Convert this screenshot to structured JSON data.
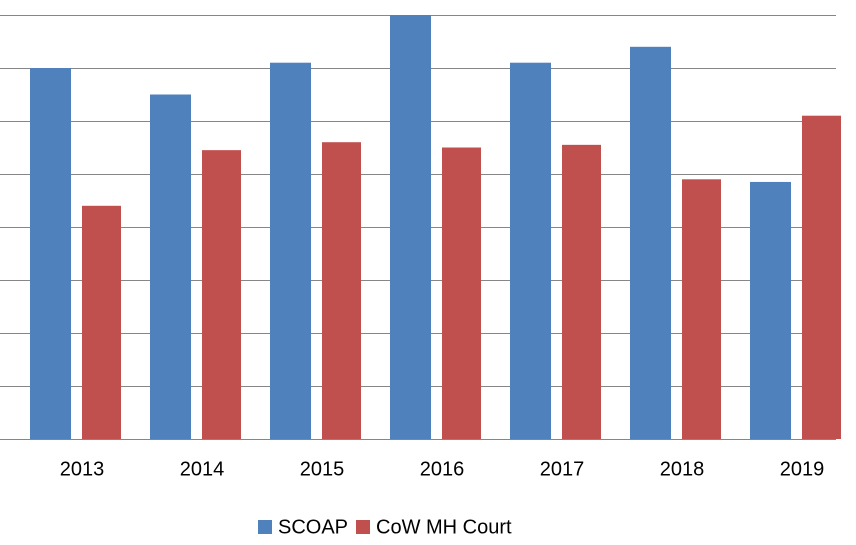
{
  "chart_data": {
    "type": "bar",
    "categories": [
      "2013",
      "2014",
      "2015",
      "2016",
      "2017",
      "2018",
      "2019"
    ],
    "series": [
      {
        "name": "SCOAP",
        "color": "#4f81bd",
        "values": [
          7.0,
          6.5,
          7.1,
          8.0,
          7.1,
          7.4,
          4.85
        ]
      },
      {
        "name": "CoW MH Court",
        "color": "#c0504d",
        "values": [
          4.4,
          5.45,
          5.6,
          5.5,
          5.55,
          4.9,
          6.1
        ]
      }
    ],
    "ylim": [
      0,
      8
    ],
    "yticks": [
      0,
      1,
      2,
      3,
      4,
      5,
      6,
      7,
      8
    ],
    "grid": true,
    "legend": "bottom"
  }
}
